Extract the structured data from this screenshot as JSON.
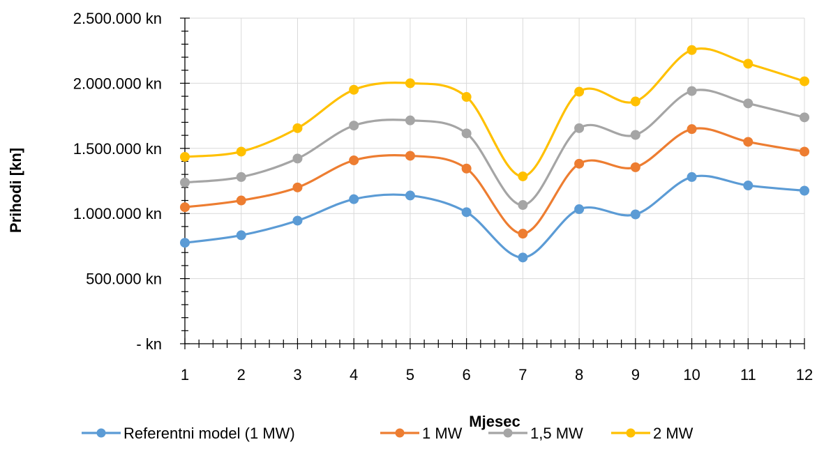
{
  "chart_data": {
    "type": "line",
    "smooth": true,
    "title": "",
    "xlabel": "Mjesec",
    "ylabel": "Prihodi [kn]",
    "x": [
      1,
      2,
      3,
      4,
      5,
      6,
      7,
      8,
      9,
      10,
      11,
      12
    ],
    "x_tick_labels": [
      "1",
      "2",
      "3",
      "4",
      "5",
      "6",
      "7",
      "8",
      "9",
      "10",
      "11",
      "12"
    ],
    "ylim": [
      0,
      2500000
    ],
    "y_major_step": 500000,
    "y_minor_step": 100000,
    "y_tick_labels": [
      "-   kn",
      "500.000 kn",
      "1.000.000 kn",
      "1.500.000 kn",
      "2.000.000 kn",
      "2.500.000 kn"
    ],
    "grid": true,
    "legend_position": "bottom",
    "series": [
      {
        "name": "Referentni model (1 MW)",
        "color": "#5B9BD5",
        "values": [
          775000,
          833000,
          945000,
          1110000,
          1138000,
          1010000,
          662000,
          1033000,
          993000,
          1280000,
          1215000,
          1175000
        ]
      },
      {
        "name": "1 MW",
        "color": "#ED7D31",
        "values": [
          1048000,
          1100000,
          1200000,
          1408000,
          1443000,
          1345000,
          845000,
          1382000,
          1355000,
          1648000,
          1550000,
          1475000
        ]
      },
      {
        "name": "1,5 MW",
        "color": "#A5A5A5",
        "values": [
          1238000,
          1280000,
          1422000,
          1675000,
          1715000,
          1615000,
          1065000,
          1655000,
          1603000,
          1940000,
          1845000,
          1738000
        ]
      },
      {
        "name": "2 MW",
        "color": "#FFC000",
        "values": [
          1435000,
          1475000,
          1655000,
          1950000,
          2000000,
          1895000,
          1285000,
          1935000,
          1860000,
          2255000,
          2150000,
          2015000
        ]
      }
    ]
  }
}
